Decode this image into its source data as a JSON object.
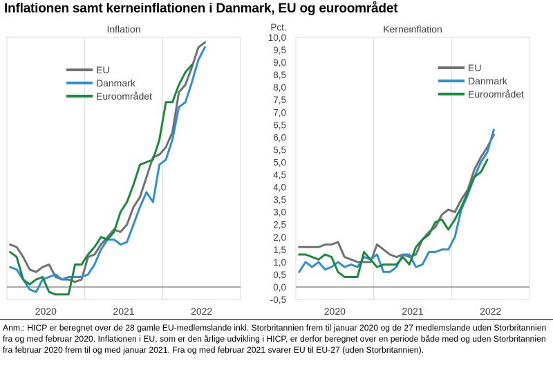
{
  "title": "Inflationen samt kerneinflationen i Danmark, EU og euroområdet",
  "note": "Anm.: HICP er beregnet over de 28 gamle EU-medlemslande inkl. Storbritannien frem til januar 2020 og de 27 medlemslande uden Storbritannien fra og med februar 2020. Inflationen i EU, som er den årlige udvikling i HICP, er derfor beregnet over en periode både med og uden Storbritannien fra februar 2020 frem til og med januar 2021. Fra og med februar 2021 svarer EU til EU-27 (uden Storbritannien).",
  "colors": {
    "EU": "#707070",
    "Danmark": "#2f8fd2",
    "Euroområdet": "#1a8a3c",
    "grid": "#d9d9d9",
    "axis": "#404040"
  },
  "chart_data": [
    {
      "type": "line",
      "title": "Inflation",
      "ylabel": "Pct.",
      "ylim": [
        -0.5,
        10.0
      ],
      "yticks": [
        "-0,5",
        "0,0",
        "0,5",
        "1,0",
        "1,5",
        "2,0",
        "2,5",
        "3,0",
        "3,5",
        "4,0",
        "4,5",
        "5,0",
        "5,5",
        "6,0",
        "6,5",
        "7,0",
        "7,5",
        "8,0",
        "8,5",
        "9,0",
        "9,5",
        "10,0"
      ],
      "year_labels": [
        "2020",
        "2021",
        "2022"
      ],
      "x_start": "2019-01",
      "legend": [
        "EU",
        "Danmark",
        "Euroområdet"
      ],
      "series": [
        {
          "name": "EU",
          "values": [
            1.7,
            1.6,
            1.2,
            0.7,
            0.6,
            0.8,
            0.9,
            0.4,
            0.3,
            0.3,
            0.2,
            0.3,
            1.2,
            1.3,
            1.7,
            2.0,
            2.3,
            2.2,
            2.5,
            3.2,
            3.6,
            4.4,
            5.2,
            5.3,
            5.6,
            6.2,
            7.8,
            8.1,
            8.8,
            9.6,
            9.8
          ]
        },
        {
          "name": "Danmark",
          "values": [
            0.8,
            0.7,
            0.3,
            -0.1,
            -0.2,
            0.3,
            0.4,
            0.5,
            0.3,
            0.4,
            0.4,
            0.4,
            0.5,
            0.9,
            1.5,
            1.9,
            1.9,
            1.7,
            1.8,
            2.5,
            3.2,
            3.8,
            3.4,
            4.9,
            5.1,
            5.9,
            7.2,
            7.4,
            8.2,
            9.1,
            9.6
          ]
        },
        {
          "name": "Euroområdet",
          "values": [
            1.4,
            1.2,
            0.3,
            0.1,
            0.3,
            0.4,
            -0.2,
            -0.3,
            -0.3,
            -0.3,
            0.9,
            0.9,
            1.3,
            1.6,
            2.0,
            1.9,
            2.2,
            3.0,
            3.4,
            4.1,
            4.9,
            5.0,
            5.1,
            5.9,
            7.4,
            7.4,
            8.1,
            8.6,
            8.9
          ]
        }
      ]
    },
    {
      "type": "line",
      "title": "Kerneinflation",
      "ylabel": "Pct.",
      "ylim": [
        -0.5,
        10.0
      ],
      "year_labels": [
        "2020",
        "2021",
        "2022"
      ],
      "x_start": "2019-01",
      "legend": [
        "EU",
        "Danmark",
        "Euroområdet"
      ],
      "series": [
        {
          "name": "EU",
          "values": [
            1.6,
            1.6,
            1.6,
            1.6,
            1.7,
            1.7,
            1.8,
            1.2,
            1.1,
            1.0,
            1.0,
            1.0,
            1.7,
            1.5,
            1.3,
            1.2,
            1.3,
            1.2,
            1.3,
            1.9,
            2.2,
            2.4,
            2.9,
            3.1,
            3.0,
            3.5,
            3.9,
            4.7,
            5.2,
            5.6,
            6.1
          ]
        },
        {
          "name": "Danmark",
          "values": [
            0.6,
            1.0,
            0.8,
            1.0,
            0.7,
            0.8,
            1.0,
            0.8,
            0.9,
            0.8,
            1.2,
            1.1,
            1.3,
            0.6,
            0.6,
            0.8,
            1.3,
            1.3,
            0.8,
            0.9,
            1.4,
            1.4,
            1.5,
            1.5,
            2.0,
            3.1,
            3.7,
            4.4,
            5.0,
            5.4,
            6.3
          ]
        },
        {
          "name": "Euroområdet",
          "values": [
            1.3,
            1.3,
            1.2,
            1.1,
            1.3,
            1.2,
            0.6,
            0.4,
            0.4,
            0.4,
            1.4,
            1.1,
            0.8,
            0.9,
            0.9,
            0.9,
            1.2,
            0.9,
            1.6,
            1.9,
            2.1,
            2.6,
            2.7,
            2.3,
            2.7,
            3.2,
            3.8,
            4.4,
            4.6,
            5.1
          ]
        }
      ]
    }
  ]
}
